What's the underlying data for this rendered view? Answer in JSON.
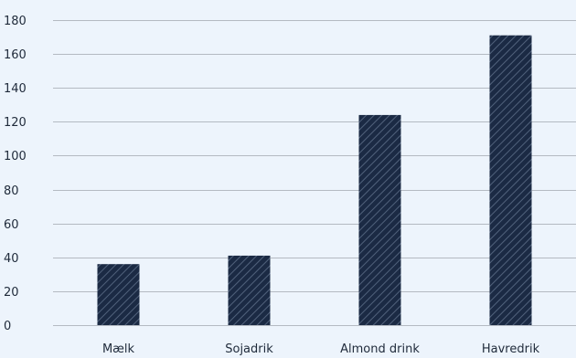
{
  "chart_data": {
    "type": "bar",
    "categories": [
      "Mælk",
      "Sojadrik",
      "Almond drink",
      "Havredrik"
    ],
    "values": [
      36,
      41,
      124,
      171
    ],
    "ylim": [
      0,
      180
    ],
    "yticks": [
      0,
      20,
      40,
      60,
      80,
      100,
      120,
      140,
      160,
      180
    ],
    "grid": true,
    "legend": "none",
    "bar_color": "#1b2a44",
    "bar_pattern": "diagonal-hatch",
    "grid_color": "#b4bac2",
    "background": "#edf4fc"
  }
}
